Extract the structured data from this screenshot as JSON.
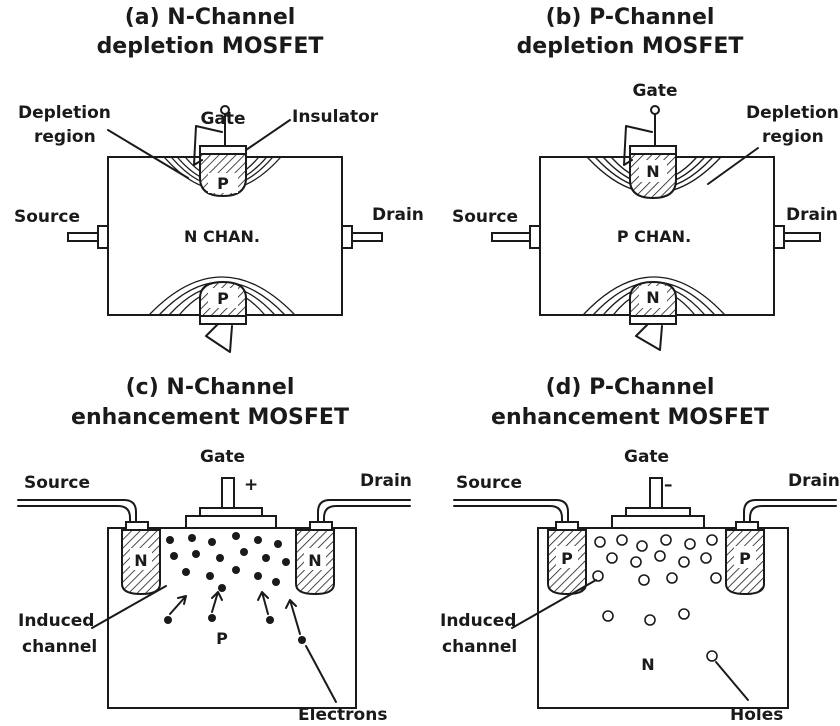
{
  "panels": {
    "a": {
      "title_line1": "(a) N-Channel",
      "title_line2": "depletion MOSFET",
      "gate": "Gate",
      "depletion_line1": "Depletion",
      "depletion_line2": "region",
      "insulator": "Insulator",
      "source": "Source",
      "drain": "Drain",
      "channel": "N CHAN.",
      "gate_region_top": "P",
      "gate_region_bottom": "P"
    },
    "b": {
      "title_line1": "(b) P-Channel",
      "title_line2": "depletion MOSFET",
      "gate": "Gate",
      "depletion_line1": "Depletion",
      "depletion_line2": "region",
      "source": "Source",
      "drain": "Drain",
      "channel": "P CHAN.",
      "gate_region_top": "N",
      "gate_region_bottom": "N"
    },
    "c": {
      "title_line1": "(c) N-Channel",
      "title_line2": "enhancement MOSFET",
      "gate": "Gate",
      "polarity": "+",
      "source": "Source",
      "drain": "Drain",
      "well_left": "N",
      "well_right": "N",
      "substrate": "P",
      "induced_line1": "Induced",
      "induced_line2": "channel",
      "carriers": "Electrons"
    },
    "d": {
      "title_line1": "(d) P-Channel",
      "title_line2": "enhancement MOSFET",
      "gate": "Gate",
      "polarity": "–",
      "source": "Source",
      "drain": "Drain",
      "well_left": "P",
      "well_right": "P",
      "substrate": "N",
      "induced_line1": "Induced",
      "induced_line2": "channel",
      "carriers": "Holes"
    }
  }
}
